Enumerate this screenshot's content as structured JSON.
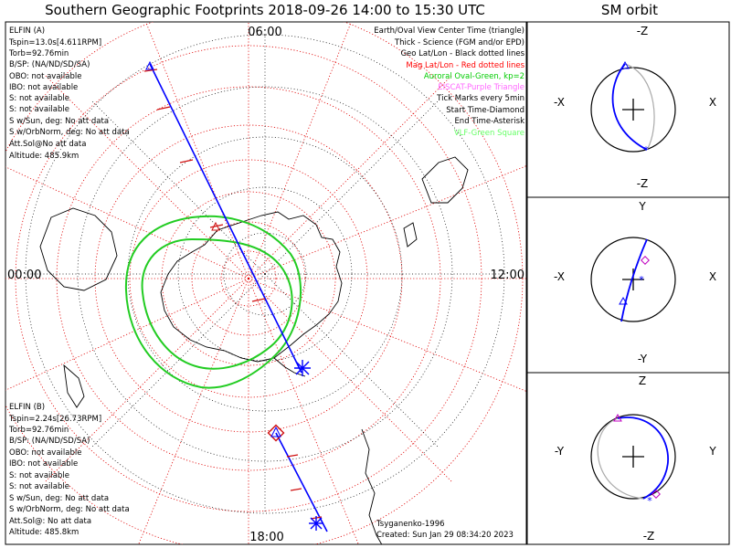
{
  "title": "Southern Geographic Footprints 2018-09-26 14:00 to 15:30 UTC",
  "orbit_title": "SM orbit",
  "hour_labels": {
    "top": "06:00",
    "left": "00:00",
    "right": "12:00",
    "bottom": "18:00"
  },
  "elfin_a": {
    "name": "ELFIN (A)",
    "color": "#0000ff",
    "lines": [
      "Tspin=13.0s[4.611RPM]",
      "Torb=92.76min",
      "B/SP: (NA/ND/SD/SA)",
      "OBO: not available",
      "IBO: not available",
      "S: not available",
      "S: not available",
      "S w/Sun, deg: No att data",
      "S w/OrbNorm, deg: No att data",
      "Att.Sol@No att data",
      "Altitude: 485.9km"
    ]
  },
  "elfin_b": {
    "name": "ELFIN (B)",
    "color": "#ff0000",
    "lines": [
      "Tspin=2.24s[26.73RPM]",
      "Torb=92.76min",
      "B/SP: (NA/ND/SD/SA)",
      "OBO: not available",
      "IBO: not available",
      "S: not available",
      "S: not available",
      "S w/Sun, deg: No att data",
      "S w/OrbNorm, deg: No att data",
      "Att.Sol@: No att data",
      "Altitude: 485.8km"
    ]
  },
  "legend": [
    {
      "text": "Earth/Oval View Center Time (triangle)",
      "color": "#000000"
    },
    {
      "text": "Thick - Science (FGM and/or EPD)",
      "color": "#000000"
    },
    {
      "text": "Geo Lat/Lon - Black dotted lines",
      "color": "#000000"
    },
    {
      "text": "Mag Lat/Lon - Red dotted lines",
      "color": "#ff0000"
    },
    {
      "text": "Auroral Oval-Green, kp=2",
      "color": "#00cc00"
    },
    {
      "text": "EISCAT-Purple Triangle",
      "color": "#ff66ff"
    },
    {
      "text": "Tick Marks every 5min",
      "color": "#000000"
    },
    {
      "text": "Start Time-Diamond",
      "color": "#000000"
    },
    {
      "text": "End Time-Asterisk",
      "color": "#000000"
    },
    {
      "text": "VLF-Green Square",
      "color": "#66ff66"
    }
  ],
  "footer": {
    "model": "Tsyganenko-1996",
    "created": "Created: Sun Jan 29 08:34:20 2023"
  },
  "sm_panels": [
    {
      "top": "-Z",
      "bottom": "-Z",
      "left": "-X",
      "right": "X"
    },
    {
      "top": "Y",
      "bottom": "-Y",
      "left": "-X",
      "right": "X"
    },
    {
      "top": "Z",
      "bottom": "-Z",
      "left": "-Y",
      "right": "Y"
    }
  ]
}
